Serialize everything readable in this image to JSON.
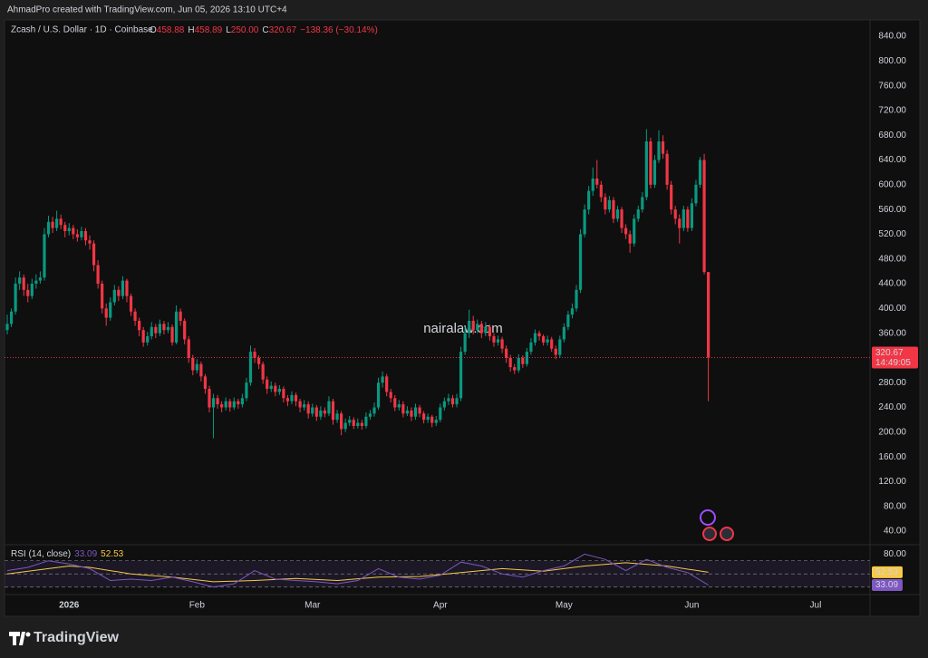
{
  "header": {
    "credit": "AhmadPro created with TradingView.com, Jun 05, 2026 13:10 UTC+4",
    "symbol": "Zcash / U.S. Dollar · 1D · Coinbase",
    "ohlc": [
      {
        "k": "O",
        "v": "458.88"
      },
      {
        "k": "H",
        "v": "458.89"
      },
      {
        "k": "L",
        "v": "250.00"
      },
      {
        "k": "C",
        "v": "320.67"
      }
    ],
    "change": "−138.36 (−30.14%)",
    "countdown": "14:49:05",
    "watermark": "nairalaw.com",
    "logo": "TradingView"
  },
  "chart_data": {
    "type": "candlestick",
    "up_color": "#089981",
    "down_color": "#f23645",
    "grid": false,
    "xlim": [
      -0.66,
      209.2
    ],
    "xticks": [
      {
        "value": 15,
        "label": "2026"
      },
      {
        "value": 46,
        "label": "Feb"
      },
      {
        "value": 74,
        "label": "Mar"
      },
      {
        "value": 105,
        "label": "Apr"
      },
      {
        "value": 135,
        "label": "May"
      },
      {
        "value": 166,
        "label": "Jun"
      },
      {
        "value": 196,
        "label": "Jul"
      }
    ],
    "ylim": [
      19.5,
      866.4
    ],
    "yticks": [
      {
        "value": 40,
        "label": "40.00"
      },
      {
        "value": 80,
        "label": "80.00"
      },
      {
        "value": 120,
        "label": "120.00"
      },
      {
        "value": 160,
        "label": "160.00"
      },
      {
        "value": 200,
        "label": "200.00"
      },
      {
        "value": 240,
        "label": "240.00"
      },
      {
        "value": 280,
        "label": "280.00"
      },
      {
        "value": 320,
        "label": "320.00"
      },
      {
        "value": 360,
        "label": "360.00"
      },
      {
        "value": 400,
        "label": "400.00"
      },
      {
        "value": 440,
        "label": "440.00"
      },
      {
        "value": 480,
        "label": "480.00"
      },
      {
        "value": 520,
        "label": "520.00"
      },
      {
        "value": 560,
        "label": "560.00"
      },
      {
        "value": 600,
        "label": "600.00"
      },
      {
        "value": 640,
        "label": "640.00"
      },
      {
        "value": 680,
        "label": "680.00"
      },
      {
        "value": 720,
        "label": "720.00"
      },
      {
        "value": 760,
        "label": "760.00"
      },
      {
        "value": 800,
        "label": "800.00"
      },
      {
        "value": 840,
        "label": "840.00"
      }
    ],
    "candles": [
      [
        365,
        390,
        358,
        375
      ],
      [
        375,
        400,
        370,
        395
      ],
      [
        395,
        450,
        390,
        440
      ],
      [
        440,
        460,
        430,
        450
      ],
      [
        450,
        455,
        420,
        430
      ],
      [
        430,
        440,
        410,
        420
      ],
      [
        420,
        448,
        415,
        440
      ],
      [
        440,
        455,
        432,
        445
      ],
      [
        445,
        460,
        440,
        450
      ],
      [
        450,
        530,
        445,
        520
      ],
      [
        520,
        550,
        515,
        540
      ],
      [
        540,
        548,
        522,
        530
      ],
      [
        530,
        558,
        525,
        545
      ],
      [
        545,
        552,
        528,
        535
      ],
      [
        535,
        540,
        515,
        525
      ],
      [
        525,
        538,
        518,
        530
      ],
      [
        530,
        535,
        512,
        520
      ],
      [
        520,
        528,
        508,
        515
      ],
      [
        515,
        532,
        510,
        525
      ],
      [
        525,
        530,
        502,
        510
      ],
      [
        510,
        518,
        495,
        505
      ],
      [
        505,
        510,
        460,
        470
      ],
      [
        470,
        478,
        432,
        440
      ],
      [
        440,
        445,
        392,
        400
      ],
      [
        400,
        408,
        372,
        385
      ],
      [
        385,
        418,
        380,
        410
      ],
      [
        410,
        438,
        405,
        430
      ],
      [
        430,
        436,
        412,
        420
      ],
      [
        420,
        452,
        415,
        445
      ],
      [
        445,
        448,
        410,
        420
      ],
      [
        420,
        424,
        388,
        395
      ],
      [
        395,
        400,
        372,
        380
      ],
      [
        380,
        385,
        355,
        365
      ],
      [
        365,
        370,
        338,
        345
      ],
      [
        345,
        362,
        340,
        355
      ],
      [
        355,
        378,
        350,
        370
      ],
      [
        370,
        375,
        352,
        360
      ],
      [
        360,
        382,
        355,
        375
      ],
      [
        375,
        380,
        358,
        365
      ],
      [
        365,
        378,
        360,
        370
      ],
      [
        370,
        374,
        340,
        345
      ],
      [
        345,
        405,
        342,
        395
      ],
      [
        395,
        400,
        372,
        380
      ],
      [
        380,
        384,
        342,
        350
      ],
      [
        350,
        355,
        312,
        320
      ],
      [
        320,
        325,
        292,
        300
      ],
      [
        300,
        318,
        295,
        310
      ],
      [
        310,
        314,
        282,
        290
      ],
      [
        290,
        294,
        262,
        270
      ],
      [
        270,
        275,
        232,
        240
      ],
      [
        240,
        262,
        190,
        255
      ],
      [
        255,
        260,
        238,
        245
      ],
      [
        245,
        250,
        232,
        240
      ],
      [
        240,
        256,
        235,
        250
      ],
      [
        250,
        254,
        233,
        240
      ],
      [
        240,
        256,
        236,
        250
      ],
      [
        250,
        254,
        238,
        245
      ],
      [
        245,
        262,
        240,
        255
      ],
      [
        255,
        288,
        250,
        280
      ],
      [
        280,
        340,
        275,
        330
      ],
      [
        330,
        336,
        312,
        320
      ],
      [
        320,
        324,
        302,
        310
      ],
      [
        310,
        314,
        278,
        285
      ],
      [
        285,
        290,
        262,
        270
      ],
      [
        270,
        282,
        265,
        275
      ],
      [
        275,
        280,
        258,
        265
      ],
      [
        265,
        276,
        260,
        270
      ],
      [
        270,
        274,
        248,
        255
      ],
      [
        255,
        260,
        242,
        250
      ],
      [
        250,
        266,
        245,
        260
      ],
      [
        260,
        264,
        242,
        250
      ],
      [
        250,
        254,
        232,
        240
      ],
      [
        240,
        252,
        235,
        245
      ],
      [
        245,
        250,
        222,
        230
      ],
      [
        230,
        246,
        225,
        240
      ],
      [
        240,
        244,
        218,
        225
      ],
      [
        225,
        242,
        220,
        235
      ],
      [
        235,
        240,
        224,
        230
      ],
      [
        230,
        258,
        226,
        250
      ],
      [
        250,
        254,
        212,
        220
      ],
      [
        220,
        236,
        215,
        230
      ],
      [
        230,
        234,
        195,
        205
      ],
      [
        205,
        222,
        200,
        215
      ],
      [
        215,
        226,
        210,
        220
      ],
      [
        220,
        224,
        205,
        210
      ],
      [
        210,
        222,
        206,
        215
      ],
      [
        215,
        220,
        204,
        210
      ],
      [
        210,
        232,
        206,
        225
      ],
      [
        225,
        236,
        220,
        230
      ],
      [
        230,
        248,
        225,
        240
      ],
      [
        240,
        288,
        236,
        280
      ],
      [
        280,
        298,
        272,
        290
      ],
      [
        290,
        294,
        258,
        265
      ],
      [
        265,
        270,
        248,
        255
      ],
      [
        255,
        260,
        234,
        240
      ],
      [
        240,
        252,
        235,
        245
      ],
      [
        245,
        250,
        224,
        230
      ],
      [
        230,
        242,
        226,
        235
      ],
      [
        235,
        240,
        218,
        225
      ],
      [
        225,
        246,
        220,
        240
      ],
      [
        240,
        244,
        224,
        230
      ],
      [
        230,
        234,
        214,
        220
      ],
      [
        220,
        230,
        215,
        225
      ],
      [
        225,
        228,
        208,
        215
      ],
      [
        215,
        226,
        210,
        220
      ],
      [
        220,
        246,
        216,
        240
      ],
      [
        240,
        256,
        235,
        250
      ],
      [
        250,
        262,
        244,
        255
      ],
      [
        255,
        260,
        240,
        245
      ],
      [
        245,
        262,
        240,
        255
      ],
      [
        255,
        338,
        250,
        330
      ],
      [
        330,
        370,
        325,
        360
      ],
      [
        360,
        398,
        352,
        380
      ],
      [
        380,
        388,
        358,
        365
      ],
      [
        365,
        382,
        360,
        375
      ],
      [
        375,
        380,
        352,
        360
      ],
      [
        360,
        378,
        355,
        370
      ],
      [
        370,
        374,
        348,
        355
      ],
      [
        355,
        360,
        338,
        345
      ],
      [
        345,
        356,
        340,
        350
      ],
      [
        350,
        354,
        328,
        335
      ],
      [
        335,
        340,
        312,
        320
      ],
      [
        320,
        325,
        298,
        305
      ],
      [
        305,
        310,
        294,
        300
      ],
      [
        300,
        326,
        296,
        320
      ],
      [
        320,
        324,
        304,
        310
      ],
      [
        310,
        336,
        306,
        330
      ],
      [
        330,
        352,
        325,
        345
      ],
      [
        345,
        366,
        340,
        360
      ],
      [
        360,
        364,
        348,
        355
      ],
      [
        355,
        358,
        340,
        345
      ],
      [
        345,
        356,
        340,
        350
      ],
      [
        350,
        354,
        330,
        335
      ],
      [
        335,
        340,
        318,
        325
      ],
      [
        325,
        356,
        320,
        350
      ],
      [
        350,
        376,
        345,
        370
      ],
      [
        370,
        396,
        365,
        390
      ],
      [
        390,
        408,
        384,
        400
      ],
      [
        400,
        438,
        395,
        430
      ],
      [
        430,
        528,
        425,
        520
      ],
      [
        520,
        568,
        515,
        560
      ],
      [
        560,
        598,
        552,
        590
      ],
      [
        590,
        628,
        582,
        610
      ],
      [
        610,
        640,
        594,
        600
      ],
      [
        600,
        606,
        572,
        580
      ],
      [
        580,
        586,
        552,
        560
      ],
      [
        560,
        582,
        555,
        575
      ],
      [
        575,
        580,
        538,
        545
      ],
      [
        545,
        566,
        540,
        560
      ],
      [
        560,
        564,
        522,
        530
      ],
      [
        530,
        536,
        512,
        520
      ],
      [
        520,
        526,
        490,
        505
      ],
      [
        505,
        552,
        500,
        545
      ],
      [
        545,
        566,
        540,
        560
      ],
      [
        560,
        588,
        555,
        580
      ],
      [
        580,
        690,
        575,
        670
      ],
      [
        670,
        676,
        594,
        600
      ],
      [
        600,
        648,
        595,
        640
      ],
      [
        640,
        688,
        635,
        670
      ],
      [
        670,
        680,
        642,
        650
      ],
      [
        650,
        656,
        592,
        600
      ],
      [
        600,
        606,
        552,
        560
      ],
      [
        560,
        566,
        536,
        545
      ],
      [
        545,
        552,
        505,
        530
      ],
      [
        530,
        566,
        525,
        560
      ],
      [
        560,
        565,
        524,
        530
      ],
      [
        530,
        578,
        525,
        570
      ],
      [
        570,
        608,
        565,
        600
      ],
      [
        600,
        645,
        595,
        640
      ],
      [
        640,
        650,
        455,
        458.88
      ],
      [
        458.88,
        458.89,
        250,
        320.67
      ]
    ],
    "rsi": {
      "name": "RSI (14, close)",
      "color": "#7e57c2",
      "x": [
        0,
        5,
        10,
        15,
        20,
        25,
        30,
        35,
        40,
        45,
        50,
        55,
        60,
        65,
        70,
        75,
        80,
        85,
        90,
        95,
        100,
        105,
        110,
        115,
        120,
        125,
        130,
        135,
        140,
        145,
        150,
        155,
        160,
        165,
        170
      ],
      "values": [
        55,
        60,
        70,
        65,
        58,
        40,
        42,
        40,
        45,
        38,
        30,
        35,
        55,
        42,
        40,
        38,
        35,
        40,
        58,
        45,
        42,
        48,
        68,
        62,
        50,
        45,
        55,
        62,
        80,
        72,
        55,
        72,
        60,
        52,
        33.09
      ]
    },
    "rsi_ma": {
      "color": "#f7c948",
      "x": [
        0,
        10,
        15,
        20,
        30,
        40,
        50,
        60,
        70,
        80,
        90,
        100,
        110,
        120,
        130,
        140,
        150,
        160,
        170
      ],
      "values": [
        50,
        58,
        62,
        60,
        50,
        45,
        38,
        40,
        43,
        40,
        45,
        46,
        52,
        58,
        54,
        62,
        67,
        62,
        52.53
      ]
    },
    "rsi_ylim": [
      20,
      93
    ],
    "rsi_yticks": [
      {
        "value": 80,
        "label": "80.00"
      }
    ],
    "rsi_bands": [
      30,
      50,
      70
    ]
  }
}
